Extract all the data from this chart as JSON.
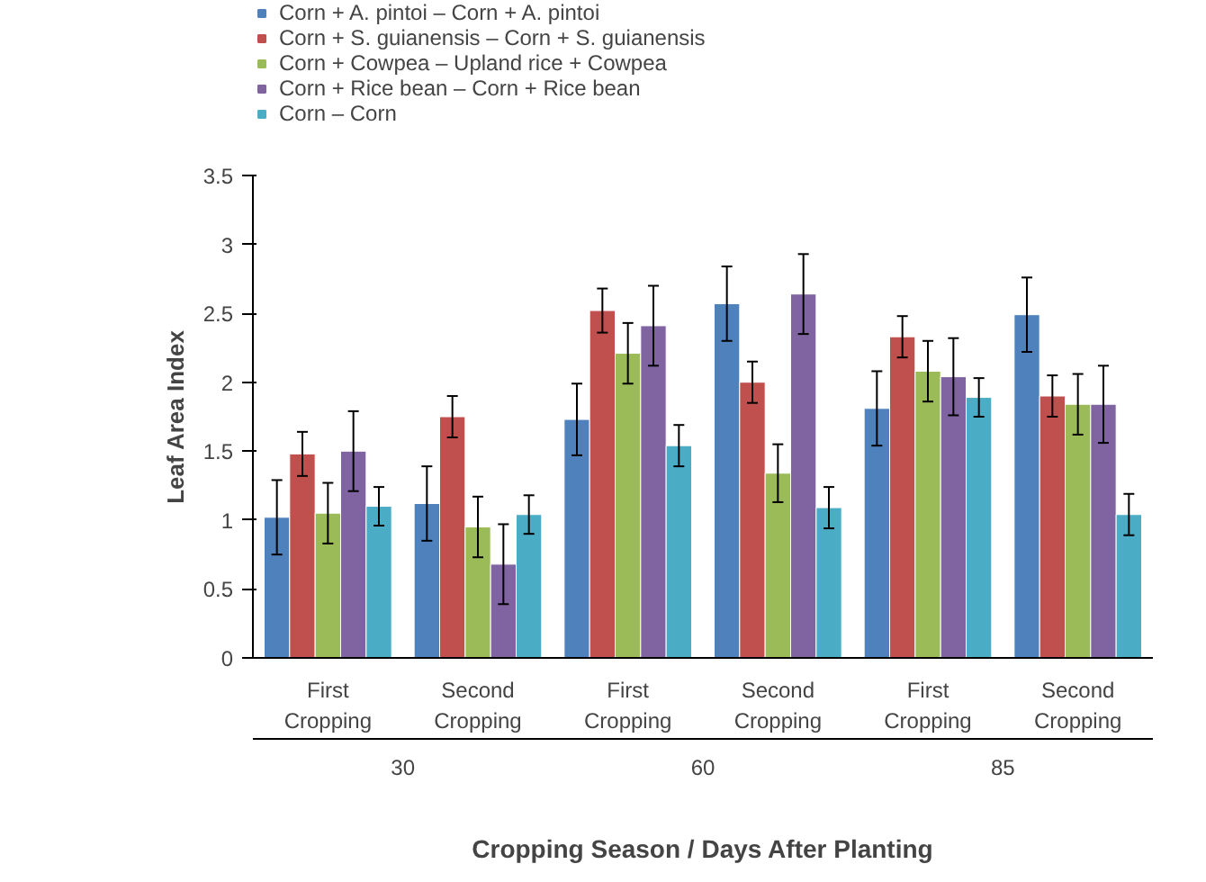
{
  "chart_data": {
    "type": "bar",
    "xlabel": "Cropping Season / Days After Planting",
    "ylabel": "Leaf Area Index",
    "categories": [
      "First Cropping",
      "Second Cropping",
      "First Cropping",
      "Second Cropping",
      "First Cropping",
      "Second Cropping"
    ],
    "annotations": [
      "30",
      "60",
      "85"
    ],
    "ylim": [
      0,
      3.5
    ],
    "yticks": [
      0,
      0.5,
      1,
      1.5,
      2,
      2.5,
      3,
      3.5
    ],
    "grid": false,
    "legend": "top",
    "series": [
      {
        "name": "Corn + A. pintoi – Corn + A. pintoi",
        "color": "#4f81bd",
        "values": [
          1.02,
          1.12,
          1.73,
          2.57,
          1.81,
          2.49
        ],
        "errors": [
          0.27,
          0.27,
          0.26,
          0.27,
          0.27,
          0.27
        ]
      },
      {
        "name": "Corn + S. guianensis – Corn + S. guianensis",
        "color": "#c0504d",
        "values": [
          1.48,
          1.75,
          2.52,
          2.0,
          2.33,
          1.9
        ],
        "errors": [
          0.16,
          0.15,
          0.16,
          0.15,
          0.15,
          0.15
        ]
      },
      {
        "name": "Corn + Cowpea – Upland rice + Cowpea",
        "color": "#9bbb59",
        "values": [
          1.05,
          0.95,
          2.21,
          1.34,
          2.08,
          1.84
        ],
        "errors": [
          0.22,
          0.22,
          0.22,
          0.21,
          0.22,
          0.22
        ]
      },
      {
        "name": "Corn + Rice bean – Corn + Rice bean",
        "color": "#8064a2",
        "values": [
          1.5,
          0.68,
          2.41,
          2.64,
          2.04,
          1.84
        ],
        "errors": [
          0.29,
          0.29,
          0.29,
          0.29,
          0.28,
          0.28
        ]
      },
      {
        "name": "Corn – Corn",
        "color": "#4bacc6",
        "values": [
          1.1,
          1.04,
          1.54,
          1.09,
          1.89,
          1.04
        ],
        "errors": [
          0.14,
          0.14,
          0.15,
          0.15,
          0.14,
          0.15
        ]
      }
    ]
  }
}
